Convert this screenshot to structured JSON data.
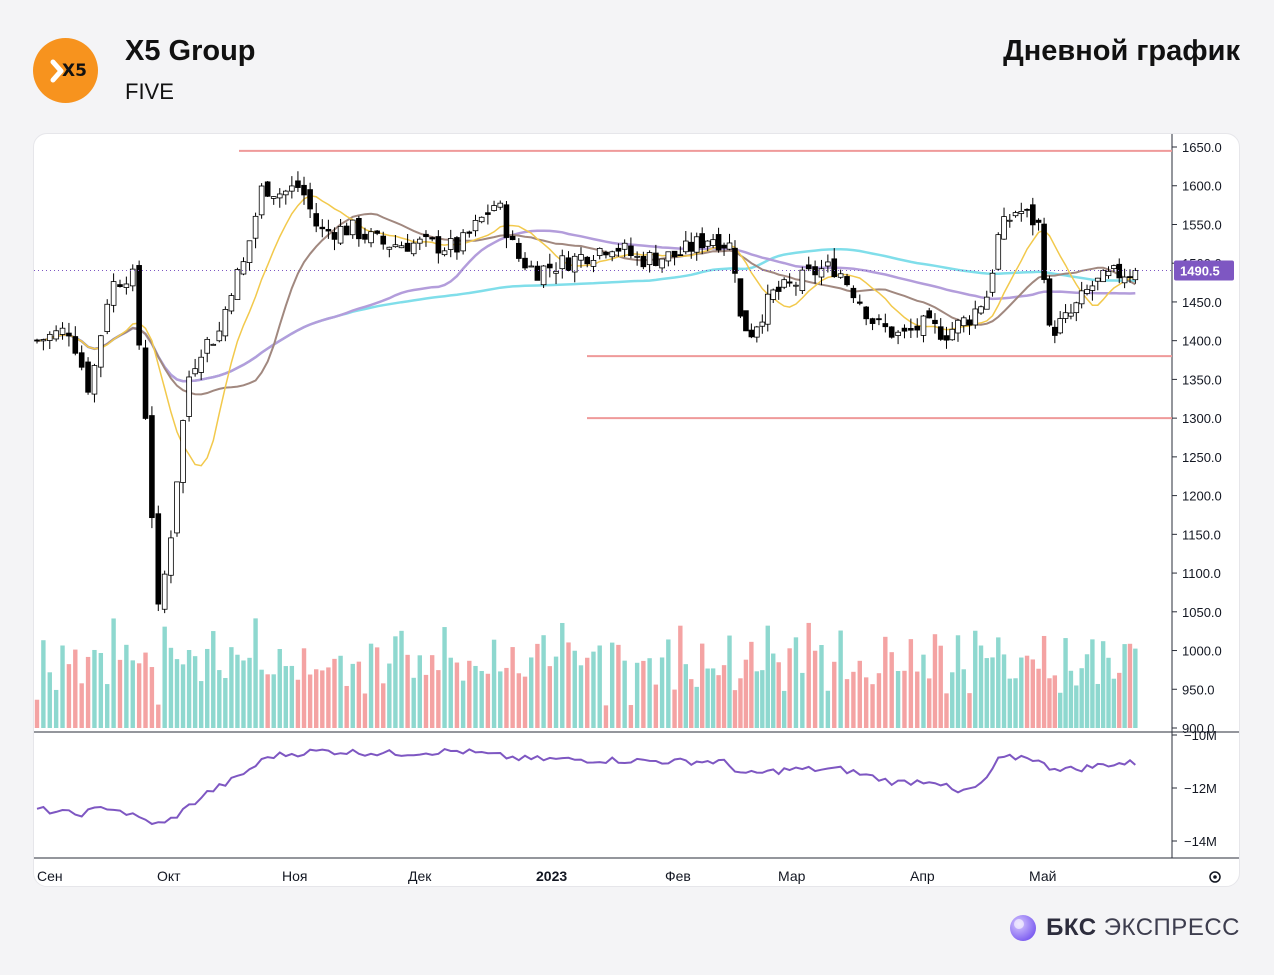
{
  "header": {
    "logo_text": "X5",
    "company": "X5 Group",
    "ticker": "FIVE",
    "period": "Дневной график"
  },
  "brand": {
    "bold": "БКС",
    "rest": "ЭКСПРЕСС"
  },
  "colors": {
    "up_candle": "#ffffff",
    "down_candle": "#000000",
    "ma_fast": "#f2c94c",
    "ma_mid": "#b39ddb",
    "ma_slow": "#80deea",
    "ma_brown": "#a1887f",
    "levels": "#ef9a9a",
    "vol_up": "#8ed8cf",
    "vol_down": "#f4a3a3",
    "indicator": "#7e57c2",
    "last_price_bg": "#7e57c2"
  },
  "chart_data": {
    "type": "candlestick",
    "ylim": [
      900,
      1660
    ],
    "y_ticks": [
      "1650.0",
      "1600.0",
      "1550.0",
      "1500.0",
      "1450.0",
      "1400.0",
      "1350.0",
      "1300.0",
      "1250.0",
      "1200.0",
      "1150.0",
      "1100.0",
      "1050.0",
      "1000.0",
      "950.0",
      "900.0"
    ],
    "last_price": "1490.5",
    "x_labels": [
      "Сен",
      "Окт",
      "Ноя",
      "Дек",
      "2023",
      "Фев",
      "Мар",
      "Апр",
      "Май"
    ],
    "levels": [
      {
        "price": 1645,
        "from_month": "Ноя"
      },
      {
        "price": 1380,
        "from_month": "2023"
      },
      {
        "price": 1300,
        "from_month": "2023"
      }
    ],
    "price_anchors": [
      {
        "m": 0.0,
        "c": 1400
      },
      {
        "m": 0.25,
        "c": 1415
      },
      {
        "m": 0.4,
        "c": 1335
      },
      {
        "m": 0.55,
        "c": 1470
      },
      {
        "m": 0.72,
        "c": 1490
      },
      {
        "m": 0.8,
        "c": 1350
      },
      {
        "m": 0.86,
        "c": 1230
      },
      {
        "m": 0.9,
        "c": 1030
      },
      {
        "m": 1.0,
        "c": 1130
      },
      {
        "m": 1.15,
        "c": 1350
      },
      {
        "m": 1.25,
        "c": 1390
      },
      {
        "m": 1.4,
        "c": 1410
      },
      {
        "m": 1.5,
        "c": 1470
      },
      {
        "m": 1.6,
        "c": 1500
      },
      {
        "m": 1.75,
        "c": 1600
      },
      {
        "m": 1.9,
        "c": 1590
      },
      {
        "m": 2.05,
        "c": 1600
      },
      {
        "m": 2.2,
        "c": 1540
      },
      {
        "m": 2.45,
        "c": 1545
      },
      {
        "m": 2.7,
        "c": 1525
      },
      {
        "m": 3.0,
        "c": 1525
      },
      {
        "m": 3.3,
        "c": 1520
      },
      {
        "m": 3.6,
        "c": 1580
      },
      {
        "m": 3.75,
        "c": 1510
      },
      {
        "m": 3.9,
        "c": 1490
      },
      {
        "m": 4.2,
        "c": 1505
      },
      {
        "m": 4.5,
        "c": 1525
      },
      {
        "m": 4.7,
        "c": 1505
      },
      {
        "m": 5.0,
        "c": 1510
      },
      {
        "m": 5.3,
        "c": 1535
      },
      {
        "m": 5.5,
        "c": 1520
      },
      {
        "m": 5.55,
        "c": 1430
      },
      {
        "m": 5.65,
        "c": 1410
      },
      {
        "m": 5.85,
        "c": 1460
      },
      {
        "m": 6.0,
        "c": 1470
      },
      {
        "m": 6.2,
        "c": 1490
      },
      {
        "m": 6.35,
        "c": 1495
      },
      {
        "m": 6.5,
        "c": 1460
      },
      {
        "m": 6.65,
        "c": 1420
      },
      {
        "m": 6.85,
        "c": 1405
      },
      {
        "m": 7.0,
        "c": 1420
      },
      {
        "m": 7.2,
        "c": 1410
      },
      {
        "m": 7.4,
        "c": 1430
      },
      {
        "m": 7.55,
        "c": 1460
      },
      {
        "m": 7.65,
        "c": 1540
      },
      {
        "m": 7.8,
        "c": 1570
      },
      {
        "m": 7.9,
        "c": 1560
      },
      {
        "m": 8.0,
        "c": 1545
      },
      {
        "m": 8.07,
        "c": 1410
      },
      {
        "m": 8.25,
        "c": 1430
      },
      {
        "m": 8.45,
        "c": 1470
      },
      {
        "m": 8.65,
        "c": 1485
      },
      {
        "m": 8.85,
        "c": 1490.5
      }
    ],
    "indicator_ticks": [
      "−10M",
      "−12M",
      "−14M"
    ],
    "indicator_anchors": [
      {
        "m": 0.0,
        "v": -12.8
      },
      {
        "m": 0.3,
        "v": -13.0
      },
      {
        "m": 0.55,
        "v": -12.7
      },
      {
        "m": 0.8,
        "v": -13.2
      },
      {
        "m": 0.95,
        "v": -13.4
      },
      {
        "m": 1.1,
        "v": -12.9
      },
      {
        "m": 1.3,
        "v": -12.2
      },
      {
        "m": 1.55,
        "v": -11.6
      },
      {
        "m": 1.8,
        "v": -10.8
      },
      {
        "m": 2.2,
        "v": -10.6
      },
      {
        "m": 2.8,
        "v": -10.7
      },
      {
        "m": 3.3,
        "v": -10.6
      },
      {
        "m": 3.8,
        "v": -10.9
      },
      {
        "m": 4.5,
        "v": -10.95
      },
      {
        "m": 5.0,
        "v": -11.0
      },
      {
        "m": 5.4,
        "v": -11.0
      },
      {
        "m": 5.6,
        "v": -11.5
      },
      {
        "m": 6.0,
        "v": -11.3
      },
      {
        "m": 6.4,
        "v": -11.3
      },
      {
        "m": 6.8,
        "v": -11.8
      },
      {
        "m": 7.1,
        "v": -11.7
      },
      {
        "m": 7.3,
        "v": -12.2
      },
      {
        "m": 7.5,
        "v": -11.9
      },
      {
        "m": 7.65,
        "v": -10.9
      },
      {
        "m": 7.9,
        "v": -10.8
      },
      {
        "m": 8.05,
        "v": -11.2
      },
      {
        "m": 8.3,
        "v": -11.3
      },
      {
        "m": 8.6,
        "v": -11.1
      },
      {
        "m": 8.85,
        "v": -11.05
      }
    ]
  }
}
